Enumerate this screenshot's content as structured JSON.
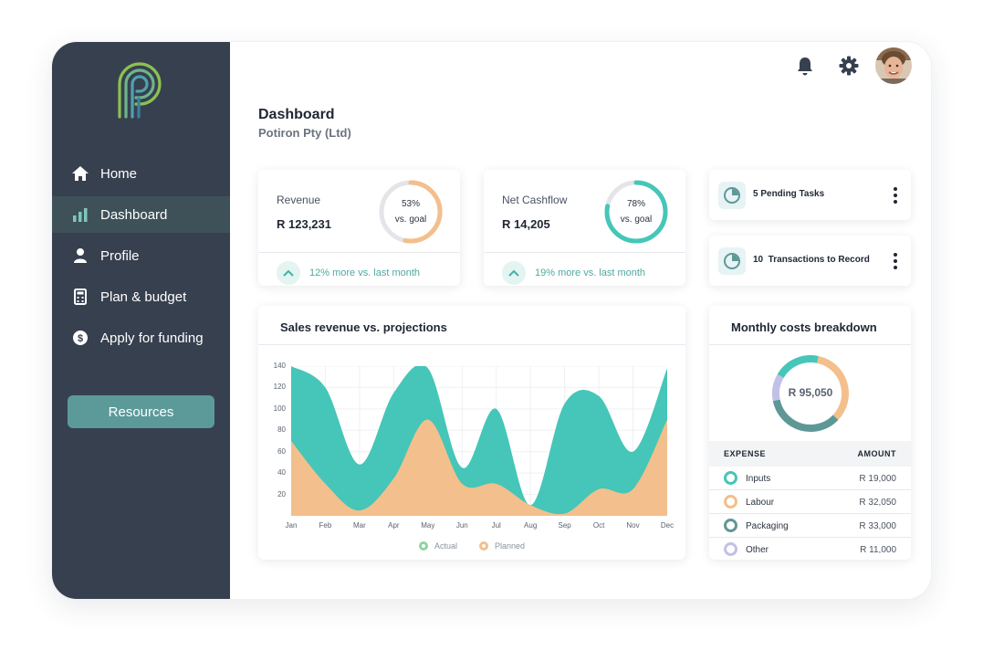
{
  "sidebar": {
    "nav": [
      {
        "label": "Home",
        "icon": "home-icon"
      },
      {
        "label": "Dashboard",
        "icon": "bar-chart-icon",
        "active": true
      },
      {
        "label": "Profile",
        "icon": "user-icon"
      },
      {
        "label": "Plan & budget",
        "icon": "calculator-icon"
      },
      {
        "label": "Apply for funding",
        "icon": "dollar-icon"
      }
    ],
    "resources_label": "Resources"
  },
  "header": {
    "title": "Dashboard",
    "subtitle": "Potiron Pty (Ltd)"
  },
  "kpis": [
    {
      "label": "Revenue",
      "value": "R 123,231",
      "percent_text": "53%",
      "goal_text": "vs. goal",
      "progress": 0.53,
      "color": "#f3bf8c",
      "footer": "12% more vs. last month"
    },
    {
      "label": "Net Cashflow",
      "value": "R 14,205",
      "percent_text": "78%",
      "goal_text": "vs. goal",
      "progress": 0.78,
      "color": "#45c6b8",
      "footer": "19% more vs. last month"
    }
  ],
  "tasks": [
    {
      "label": "5 Pending Tasks"
    },
    {
      "label": "10  Transactions to Record"
    }
  ],
  "sales_chart": {
    "title": "Sales revenue vs. projections",
    "chart_data": {
      "type": "area",
      "categories": [
        "Jan",
        "Feb",
        "Mar",
        "Apr",
        "May",
        "Jun",
        "Jul",
        "Aug",
        "Sep",
        "Oct",
        "Nov",
        "Dec"
      ],
      "yticks": [
        "140",
        "120",
        "100",
        "80",
        "60",
        "40",
        "20"
      ],
      "ylim": [
        0,
        140
      ],
      "series": [
        {
          "name": "Actual",
          "color": "#45c6b8",
          "values": [
            140,
            120,
            48,
            115,
            138,
            45,
            100,
            10,
            105,
            112,
            60,
            138
          ]
        },
        {
          "name": "Planned",
          "color": "#f3bf8c",
          "values": [
            70,
            30,
            5,
            35,
            90,
            30,
            30,
            10,
            2,
            25,
            25,
            90
          ]
        }
      ],
      "legend": "bottom"
    }
  },
  "costs": {
    "title": "Monthly costs breakdown",
    "total": "R 95,050",
    "col_expense": "EXPENSE",
    "col_amount": "AMOUNT",
    "items": [
      {
        "name": "Inputs",
        "amount": "R 19,000",
        "value": 19000,
        "color": "#45c6b8"
      },
      {
        "name": "Labour",
        "amount": "R 32,050",
        "value": 32050,
        "color": "#f3bf8c"
      },
      {
        "name": "Packaging",
        "amount": "R 33,000",
        "value": 33000,
        "color": "#5e9896"
      },
      {
        "name": "Other",
        "amount": "R 11,000",
        "value": 11000,
        "color": "#c3c0e6"
      }
    ]
  }
}
